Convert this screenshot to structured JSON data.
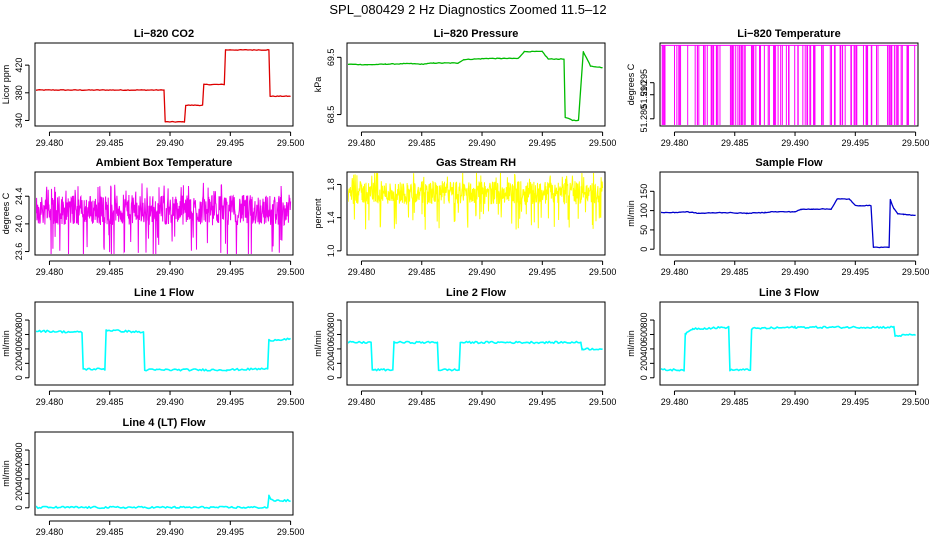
{
  "page_title": "SPL_080429  2 Hz Diagnostics Zoomed 11.5–12",
  "chart_data": [
    {
      "type": "line",
      "title": "Li−820 CO2",
      "xlabel": "",
      "ylabel": "Licor ppm",
      "color": "#dd0000",
      "xlim": [
        29.4788,
        29.5002
      ],
      "ylim": [
        332,
        452
      ],
      "x_ticks": [
        "29.480",
        "29.485",
        "29.490",
        "29.495",
        "29.500"
      ],
      "y_ticks": [
        "340",
        "380",
        "420"
      ],
      "series": [
        {
          "x": [
            29.4788,
            29.4895,
            29.4896,
            29.4912,
            29.4913,
            29.4927,
            29.4928,
            29.4945,
            29.4946,
            29.4982,
            29.4983,
            29.5
          ],
          "y": [
            384,
            384,
            338,
            338,
            362,
            362,
            392,
            392,
            442,
            442,
            375,
            375
          ]
        }
      ]
    },
    {
      "type": "line",
      "title": "Li−820 Pressure",
      "xlabel": "",
      "ylabel": "kPa",
      "color": "#00bb00",
      "xlim": [
        29.4788,
        29.5002
      ],
      "ylim": [
        68.3,
        69.75
      ],
      "x_ticks": [
        "29.480",
        "29.485",
        "29.490",
        "29.495",
        "29.500"
      ],
      "y_ticks": [
        "68.5",
        "69.5"
      ],
      "series": [
        {
          "x": [
            29.4788,
            29.4805,
            29.482,
            29.484,
            29.485,
            29.486,
            29.488,
            29.4885,
            29.4905,
            29.4915,
            29.493,
            29.4935,
            29.495,
            29.4955,
            29.4968,
            29.4969,
            29.4975,
            29.498,
            29.4984,
            29.499,
            29.5
          ],
          "y": [
            69.38,
            69.37,
            69.38,
            69.39,
            69.38,
            69.4,
            69.4,
            69.46,
            69.48,
            69.48,
            69.48,
            69.6,
            69.6,
            69.47,
            69.47,
            68.45,
            68.4,
            68.4,
            69.6,
            69.35,
            69.32
          ]
        }
      ]
    },
    {
      "type": "line",
      "title": "Li−820 Temperature",
      "xlabel": "",
      "ylabel": "degrees C",
      "color": "#ff00ff",
      "xlim": [
        29.4788,
        29.5002
      ],
      "ylim": [
        51.277,
        51.3115
      ],
      "x_ticks": [
        "29.480",
        "29.485",
        "29.490",
        "29.495",
        "29.500"
      ],
      "y_ticks": [
        "51.280",
        "51.290",
        "51.295"
      ],
      "series": [
        {
          "x": [
            29.4788,
            29.5
          ],
          "y": [
            51.3105,
            51.3105
          ]
        }
      ]
    },
    {
      "type": "line",
      "title": "Ambient Box Temperature",
      "xlabel": "",
      "ylabel": "degrees C",
      "color": "#ee00ee",
      "xlim": [
        29.4788,
        29.5002
      ],
      "ylim": [
        23.55,
        24.75
      ],
      "x_ticks": [
        "29.480",
        "29.485",
        "29.490",
        "29.495",
        "29.500"
      ],
      "y_ticks": [
        "23.6",
        "24.0",
        "24.4"
      ],
      "series": [
        {
          "x": [
            29.4788,
            29.5
          ],
          "y": [
            24.2,
            24.2
          ]
        }
      ]
    },
    {
      "type": "line",
      "title": "Gas Stream RH",
      "xlabel": "",
      "ylabel": "percent",
      "color": "#ffff00",
      "xlim": [
        29.4788,
        29.5002
      ],
      "ylim": [
        0.95,
        1.95
      ],
      "x_ticks": [
        "29.480",
        "29.485",
        "29.490",
        "29.495",
        "29.500"
      ],
      "y_ticks": [
        "1.0",
        "1.4",
        "1.8"
      ],
      "series": [
        {
          "x": [
            29.4788,
            29.5
          ],
          "y": [
            1.7,
            1.7
          ]
        }
      ]
    },
    {
      "type": "line",
      "title": "Sample Flow",
      "xlabel": "",
      "ylabel": "ml/min",
      "color": "#0000cc",
      "xlim": [
        29.4788,
        29.5002
      ],
      "ylim": [
        -15,
        200
      ],
      "x_ticks": [
        "29.480",
        "29.485",
        "29.490",
        "29.495",
        "29.500"
      ],
      "y_ticks": [
        "0",
        "50",
        "100",
        "150"
      ],
      "series": [
        {
          "x": [
            29.4788,
            29.48,
            29.481,
            29.482,
            29.484,
            29.486,
            29.4875,
            29.488,
            29.49,
            29.4905,
            29.4915,
            29.493,
            29.4935,
            29.4945,
            29.495,
            29.4963,
            29.4965,
            29.4978,
            29.4979,
            29.4982,
            29.4985,
            29.499,
            29.5
          ],
          "y": [
            95,
            95,
            97,
            93,
            95,
            93,
            95,
            97,
            97,
            103,
            104,
            104,
            130,
            130,
            113,
            113,
            5,
            5,
            128,
            105,
            92,
            90,
            88
          ]
        }
      ]
    },
    {
      "type": "line",
      "title": "Line 1 Flow",
      "xlabel": "",
      "ylabel": "ml/min",
      "color": "#00ffff",
      "xlim": [
        29.4788,
        29.5002
      ],
      "ylim": [
        -100,
        1050
      ],
      "x_ticks": [
        "29.480",
        "29.485",
        "29.490",
        "29.495",
        "29.500"
      ],
      "y_ticks": [
        "0",
        "200",
        "400",
        "600",
        "800"
      ],
      "series": [
        {
          "x": [
            29.4788,
            29.4827,
            29.4828,
            29.4846,
            29.4847,
            29.4878,
            29.4879,
            29.4947,
            29.4981,
            29.4982,
            29.5
          ],
          "y": [
            650,
            630,
            120,
            120,
            660,
            630,
            110,
            110,
            125,
            520,
            540
          ]
        }
      ]
    },
    {
      "type": "line",
      "title": "Line 2 Flow",
      "xlabel": "",
      "ylabel": "ml/min",
      "color": "#00ffff",
      "xlim": [
        29.4788,
        29.5002
      ],
      "ylim": [
        -100,
        1050
      ],
      "x_ticks": [
        "29.480",
        "29.485",
        "29.490",
        "29.495",
        "29.500"
      ],
      "y_ticks": [
        "0",
        "200",
        "400",
        "600",
        "800"
      ],
      "series": [
        {
          "x": [
            29.4788,
            29.4808,
            29.4809,
            29.4826,
            29.4827,
            29.4863,
            29.4864,
            29.4881,
            29.4882,
            29.4982,
            29.4983,
            29.5
          ],
          "y": [
            490,
            490,
            110,
            110,
            490,
            490,
            110,
            110,
            490,
            490,
            400,
            400
          ]
        }
      ]
    },
    {
      "type": "line",
      "title": "Line 3 Flow",
      "xlabel": "",
      "ylabel": "ml/min",
      "color": "#00ffff",
      "xlim": [
        29.4788,
        29.5002
      ],
      "ylim": [
        -100,
        1050
      ],
      "x_ticks": [
        "29.480",
        "29.485",
        "29.490",
        "29.495",
        "29.500"
      ],
      "y_ticks": [
        "0",
        "200",
        "400",
        "600",
        "800"
      ],
      "series": [
        {
          "x": [
            29.4788,
            29.4808,
            29.4809,
            29.4815,
            29.4845,
            29.4846,
            29.4863,
            29.4864,
            29.49,
            29.4982,
            29.4983,
            29.5
          ],
          "y": [
            110,
            110,
            600,
            680,
            700,
            110,
            110,
            680,
            700,
            700,
            580,
            600
          ]
        }
      ]
    },
    {
      "type": "line",
      "title": "Line 4 (LT) Flow",
      "xlabel": "",
      "ylabel": "ml/min",
      "color": "#00ffff",
      "xlim": [
        29.4788,
        29.5002
      ],
      "ylim": [
        -100,
        1050
      ],
      "x_ticks": [
        "29.480",
        "29.485",
        "29.490",
        "29.495",
        "29.500"
      ],
      "y_ticks": [
        "0",
        "200",
        "400",
        "600",
        "800"
      ],
      "series": [
        {
          "x": [
            29.4788,
            29.4981,
            29.4982,
            29.4985,
            29.5
          ],
          "y": [
            5,
            5,
            160,
            100,
            100
          ]
        }
      ]
    }
  ]
}
